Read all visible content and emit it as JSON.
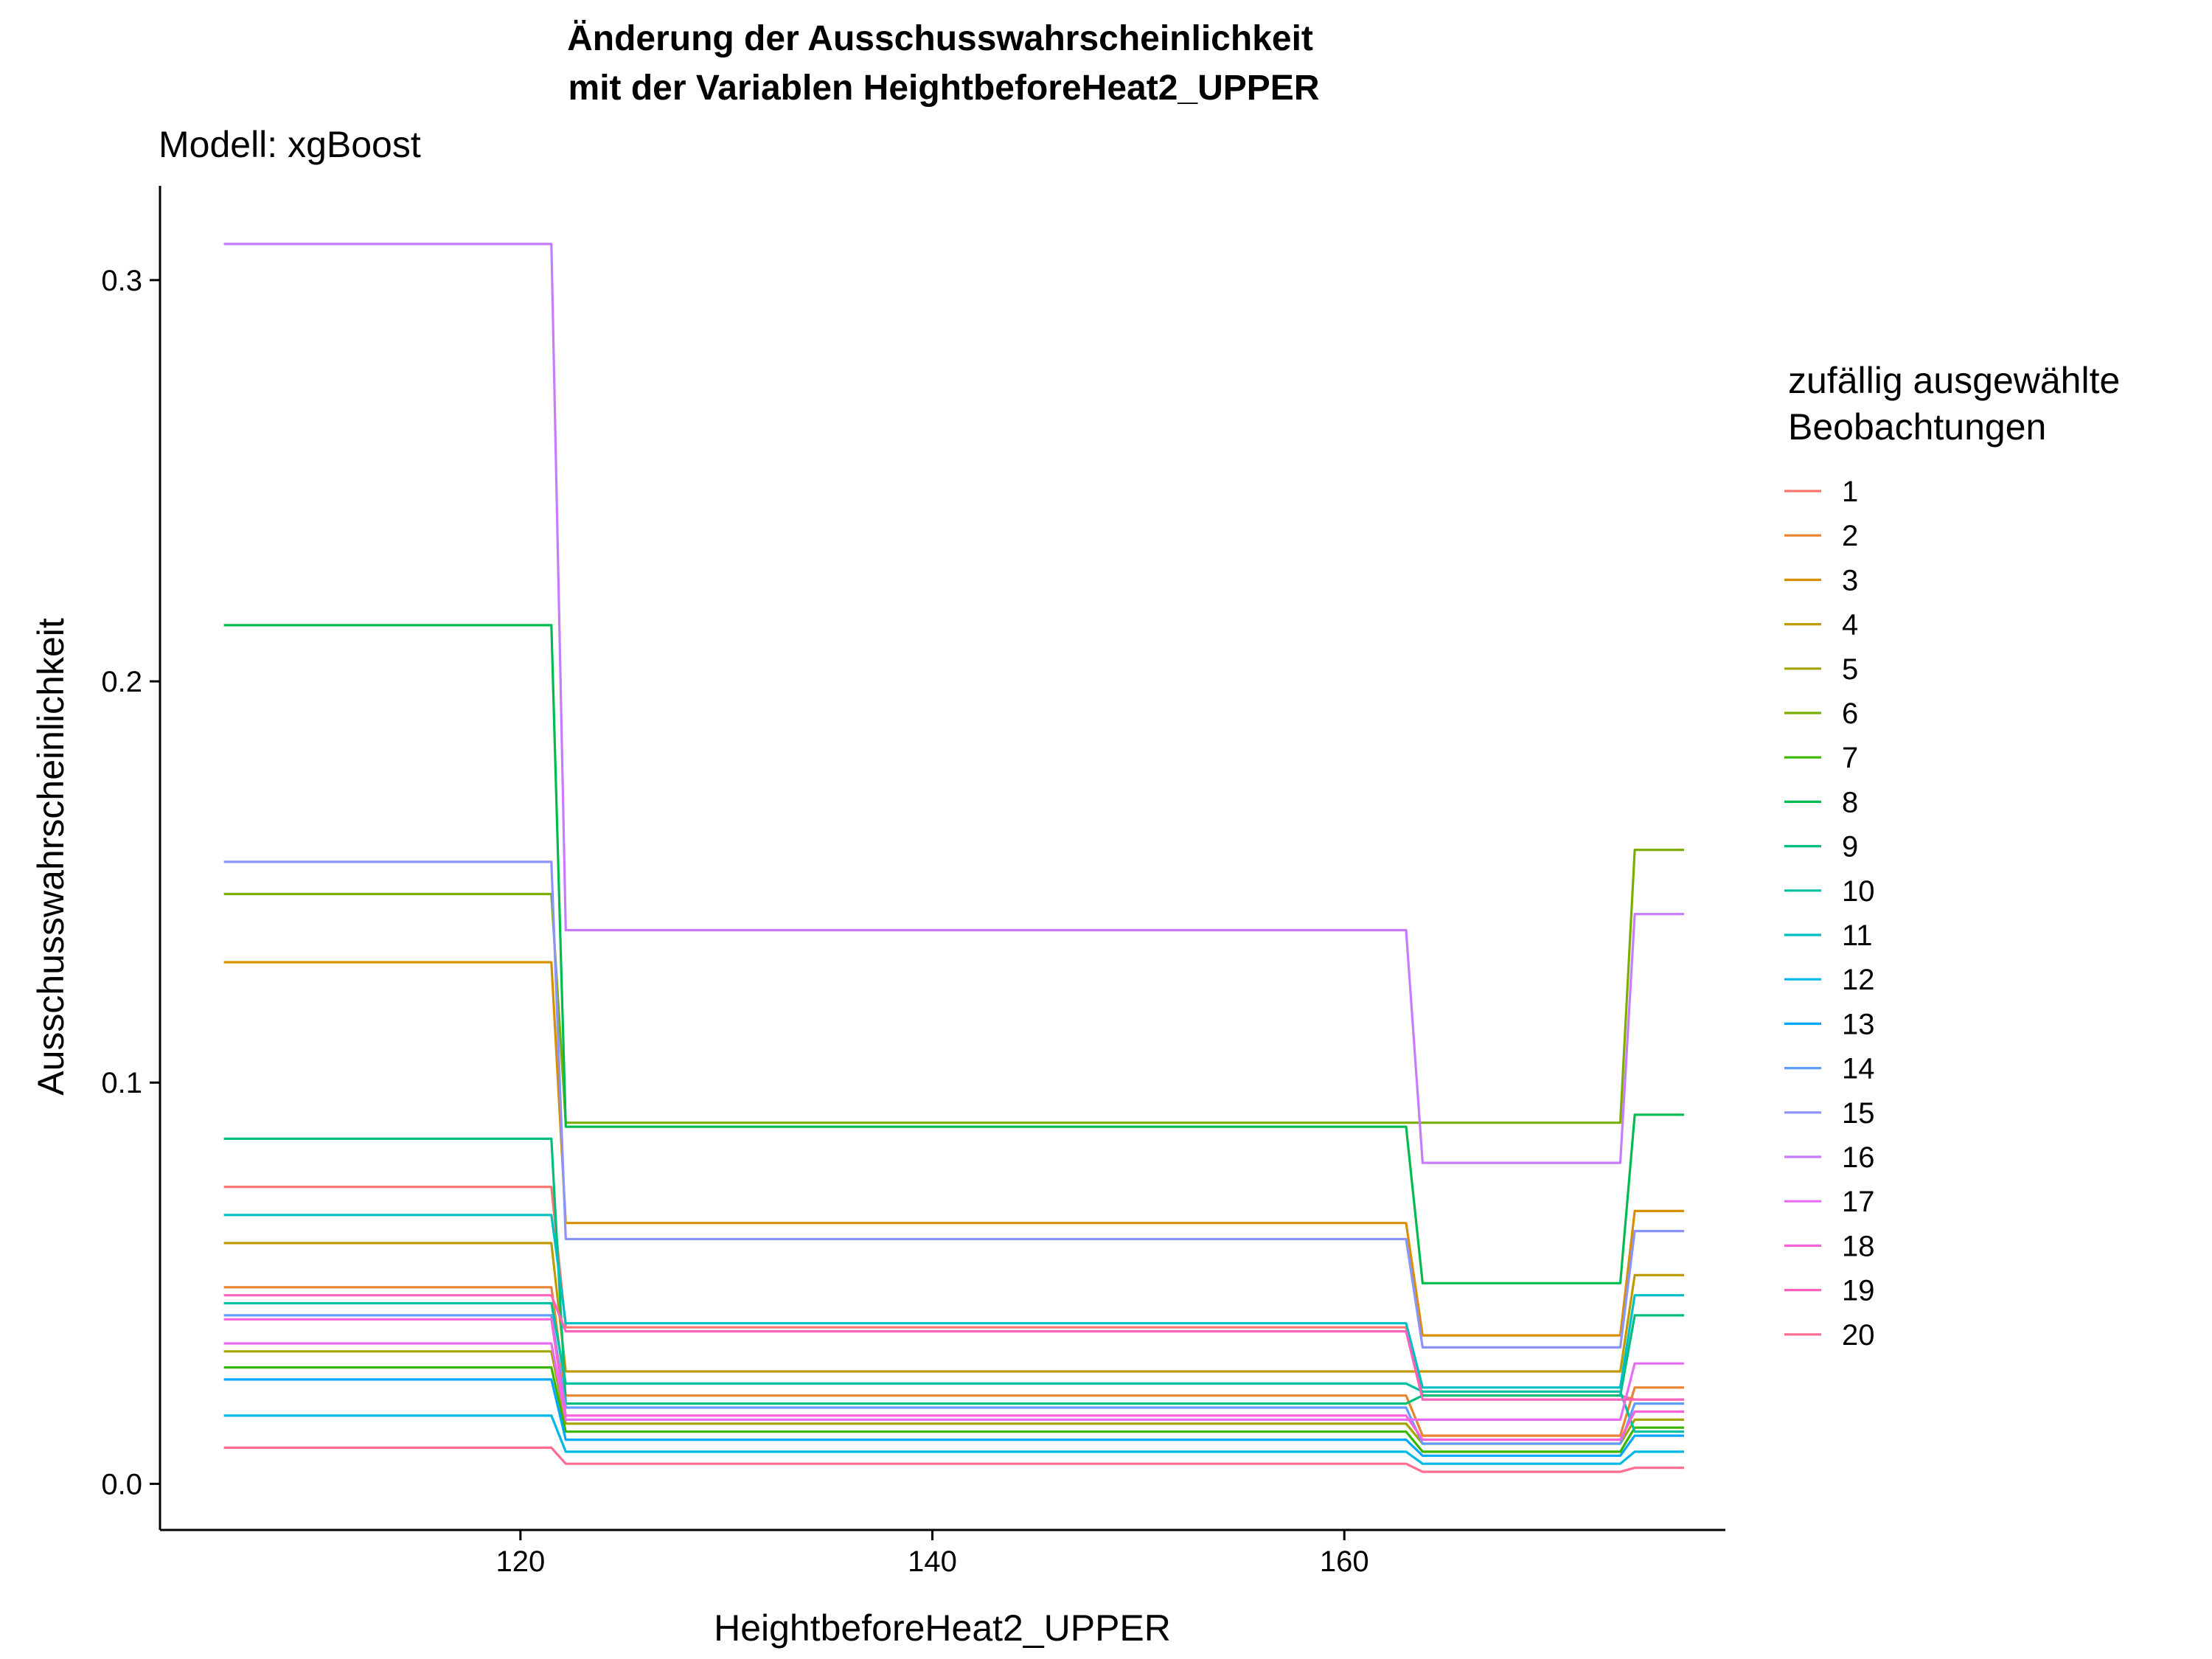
{
  "chart_data": {
    "type": "line",
    "title_line1": "Änderung der Ausschusswahrscheinlichkeit",
    "title_line2": "mit der Variablen HeightbeforeHeat2_UPPER",
    "subtitle": "Modell: xgBoost",
    "xlabel": "HeightbeforeHeat2_UPPER",
    "ylabel": "Ausschusswahrscheinlichkeit",
    "xlim": [
      102.5,
      178.5
    ],
    "ylim": [
      -0.0115,
      0.3235
    ],
    "x_ticks": [
      120,
      140,
      160
    ],
    "y_ticks": [
      0.0,
      0.1,
      0.2,
      0.3
    ],
    "y_tick_labels": [
      "0.0",
      "0.1",
      "0.2",
      "0.3"
    ],
    "grid": false,
    "legend_title_line1": "zufällig ausgewählte",
    "legend_title_line2": "Beobachtungen",
    "legend_position": "right",
    "x": [
      105.6,
      121.5,
      122.2,
      163.0,
      163.8,
      173.4,
      174.1,
      176.5
    ],
    "series": [
      {
        "name": "1",
        "color": "#F8766D",
        "values": [
          0.074,
          0.074,
          0.039,
          0.039,
          0.022,
          0.022,
          0.021,
          0.021
        ]
      },
      {
        "name": "2",
        "color": "#EA8331",
        "values": [
          0.049,
          0.049,
          0.022,
          0.022,
          0.012,
          0.012,
          0.024,
          0.024
        ]
      },
      {
        "name": "3",
        "color": "#D89000",
        "values": [
          0.13,
          0.13,
          0.065,
          0.065,
          0.037,
          0.037,
          0.068,
          0.068
        ]
      },
      {
        "name": "4",
        "color": "#C09B00",
        "values": [
          0.06,
          0.06,
          0.028,
          0.028,
          0.028,
          0.028,
          0.052,
          0.052
        ]
      },
      {
        "name": "5",
        "color": "#A3A500",
        "values": [
          0.033,
          0.033,
          0.015,
          0.015,
          0.01,
          0.01,
          0.016,
          0.016
        ]
      },
      {
        "name": "6",
        "color": "#7CAE00",
        "values": [
          0.147,
          0.147,
          0.09,
          0.09,
          0.09,
          0.09,
          0.158,
          0.158
        ]
      },
      {
        "name": "7",
        "color": "#39B600",
        "values": [
          0.029,
          0.029,
          0.013,
          0.013,
          0.008,
          0.008,
          0.014,
          0.014
        ]
      },
      {
        "name": "8",
        "color": "#00BB4E",
        "values": [
          0.214,
          0.214,
          0.089,
          0.089,
          0.05,
          0.05,
          0.092,
          0.092
        ]
      },
      {
        "name": "9",
        "color": "#00BF7D",
        "values": [
          0.086,
          0.086,
          0.02,
          0.02,
          0.022,
          0.022,
          0.042,
          0.042
        ]
      },
      {
        "name": "10",
        "color": "#00C1A3",
        "values": [
          0.045,
          0.045,
          0.025,
          0.025,
          0.023,
          0.023,
          0.013,
          0.013
        ]
      },
      {
        "name": "11",
        "color": "#00BFC4",
        "values": [
          0.067,
          0.067,
          0.04,
          0.04,
          0.024,
          0.024,
          0.047,
          0.047
        ]
      },
      {
        "name": "12",
        "color": "#00B8E7",
        "values": [
          0.017,
          0.017,
          0.008,
          0.008,
          0.005,
          0.005,
          0.008,
          0.008
        ]
      },
      {
        "name": "13",
        "color": "#00A9FF",
        "values": [
          0.026,
          0.026,
          0.011,
          0.011,
          0.007,
          0.007,
          0.012,
          0.012
        ]
      },
      {
        "name": "14",
        "color": "#619CFF",
        "values": [
          0.042,
          0.042,
          0.019,
          0.019,
          0.01,
          0.01,
          0.02,
          0.02
        ]
      },
      {
        "name": "15",
        "color": "#8B93FF",
        "values": [
          0.155,
          0.155,
          0.061,
          0.061,
          0.034,
          0.034,
          0.063,
          0.063
        ]
      },
      {
        "name": "16",
        "color": "#C77CFF",
        "values": [
          0.309,
          0.309,
          0.138,
          0.138,
          0.08,
          0.08,
          0.142,
          0.142
        ]
      },
      {
        "name": "17",
        "color": "#E76BF3",
        "values": [
          0.035,
          0.035,
          0.016,
          0.016,
          0.016,
          0.016,
          0.03,
          0.03
        ]
      },
      {
        "name": "18",
        "color": "#FA62DB",
        "values": [
          0.041,
          0.041,
          0.017,
          0.017,
          0.011,
          0.011,
          0.018,
          0.018
        ]
      },
      {
        "name": "19",
        "color": "#FF62BC",
        "values": [
          0.047,
          0.047,
          0.038,
          0.038,
          0.021,
          0.021,
          0.021,
          0.021
        ]
      },
      {
        "name": "20",
        "color": "#FF6C91",
        "values": [
          0.009,
          0.009,
          0.005,
          0.005,
          0.003,
          0.003,
          0.004,
          0.004
        ]
      }
    ]
  }
}
